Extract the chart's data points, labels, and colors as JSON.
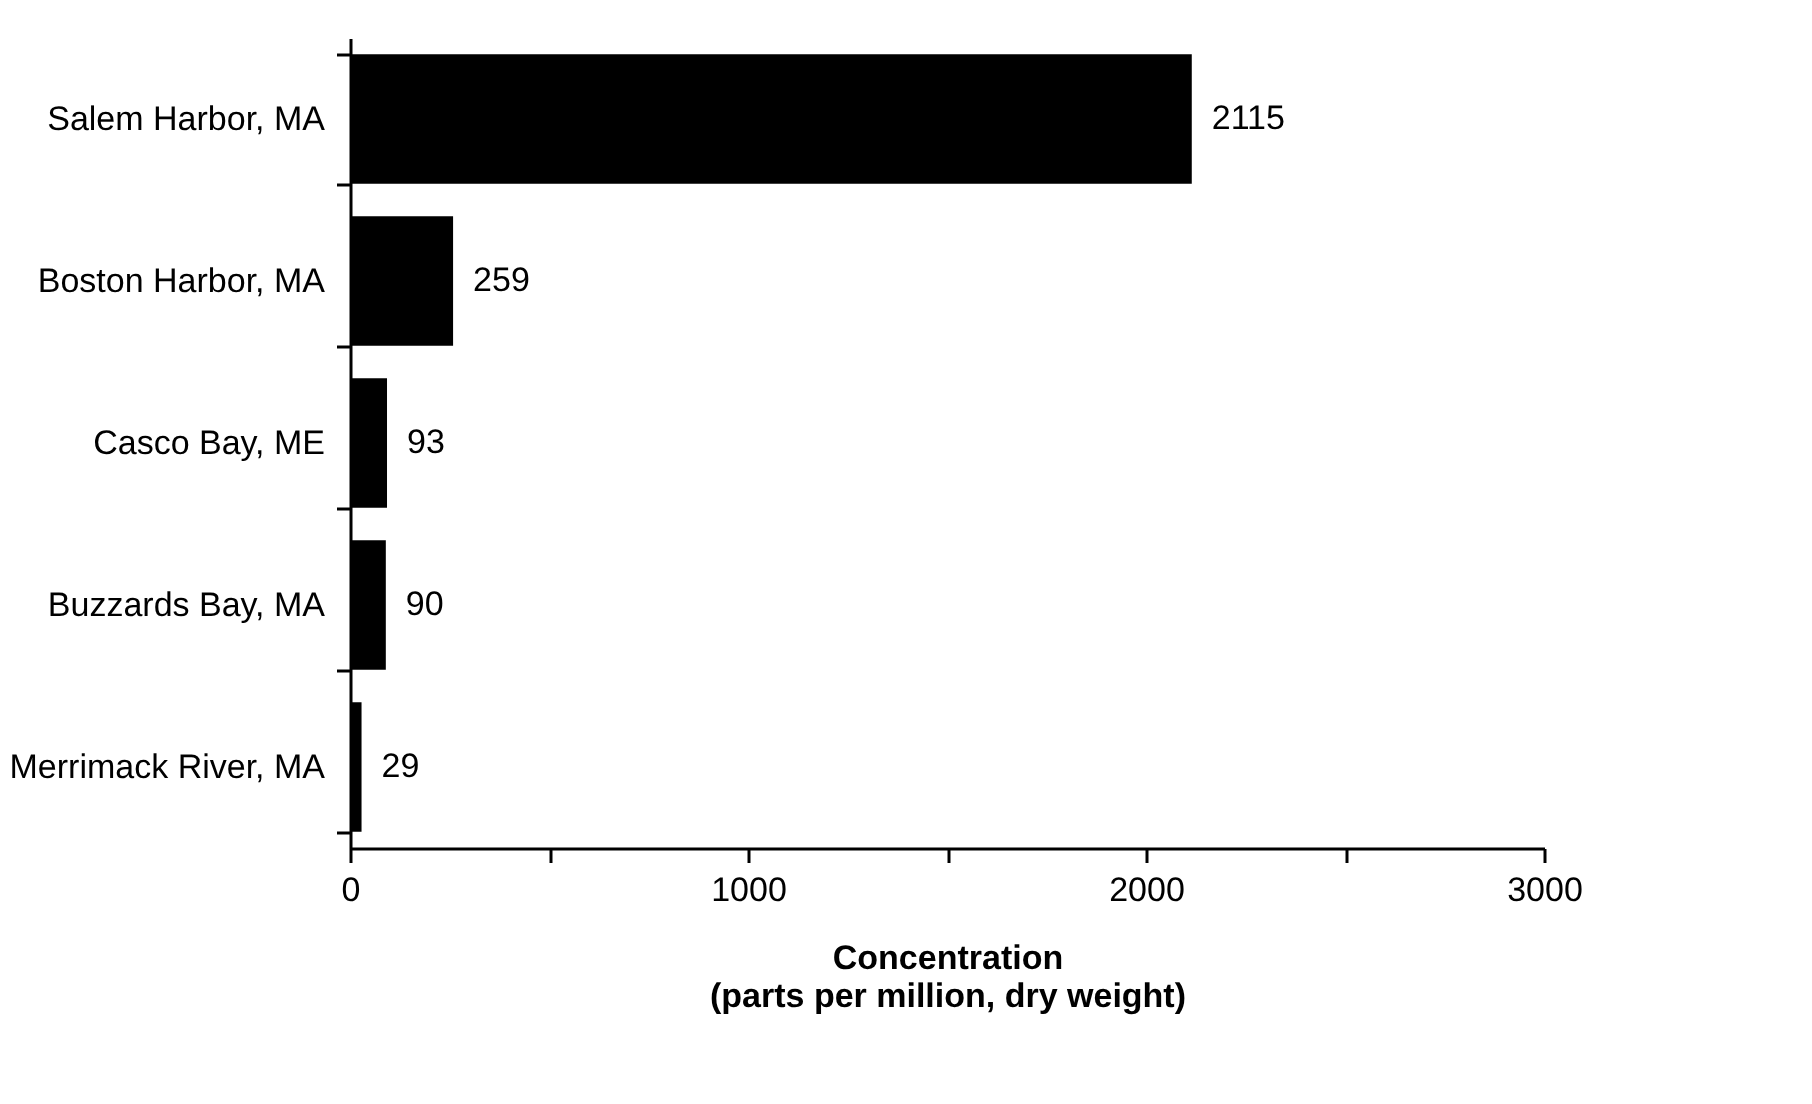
{
  "chart_data": {
    "type": "bar",
    "orientation": "horizontal",
    "categories": [
      "Salem Harbor, MA",
      "Boston Harbor, MA",
      "Casco Bay, ME",
      "Buzzards Bay, MA",
      "Merrimack River, MA"
    ],
    "values": [
      2115,
      259,
      93,
      90,
      29
    ],
    "color": "#000000",
    "data_labels": true,
    "xlabel": "Concentration\n(parts per million, dry weight)",
    "xlim": [
      0,
      3000
    ],
    "xticks": [
      0,
      {
        "value": 500,
        "label": null
      },
      1000,
      {
        "value": 1500,
        "label": null
      },
      2000,
      {
        "value": 2500,
        "label": null
      },
      3000
    ],
    "grid": false
  }
}
